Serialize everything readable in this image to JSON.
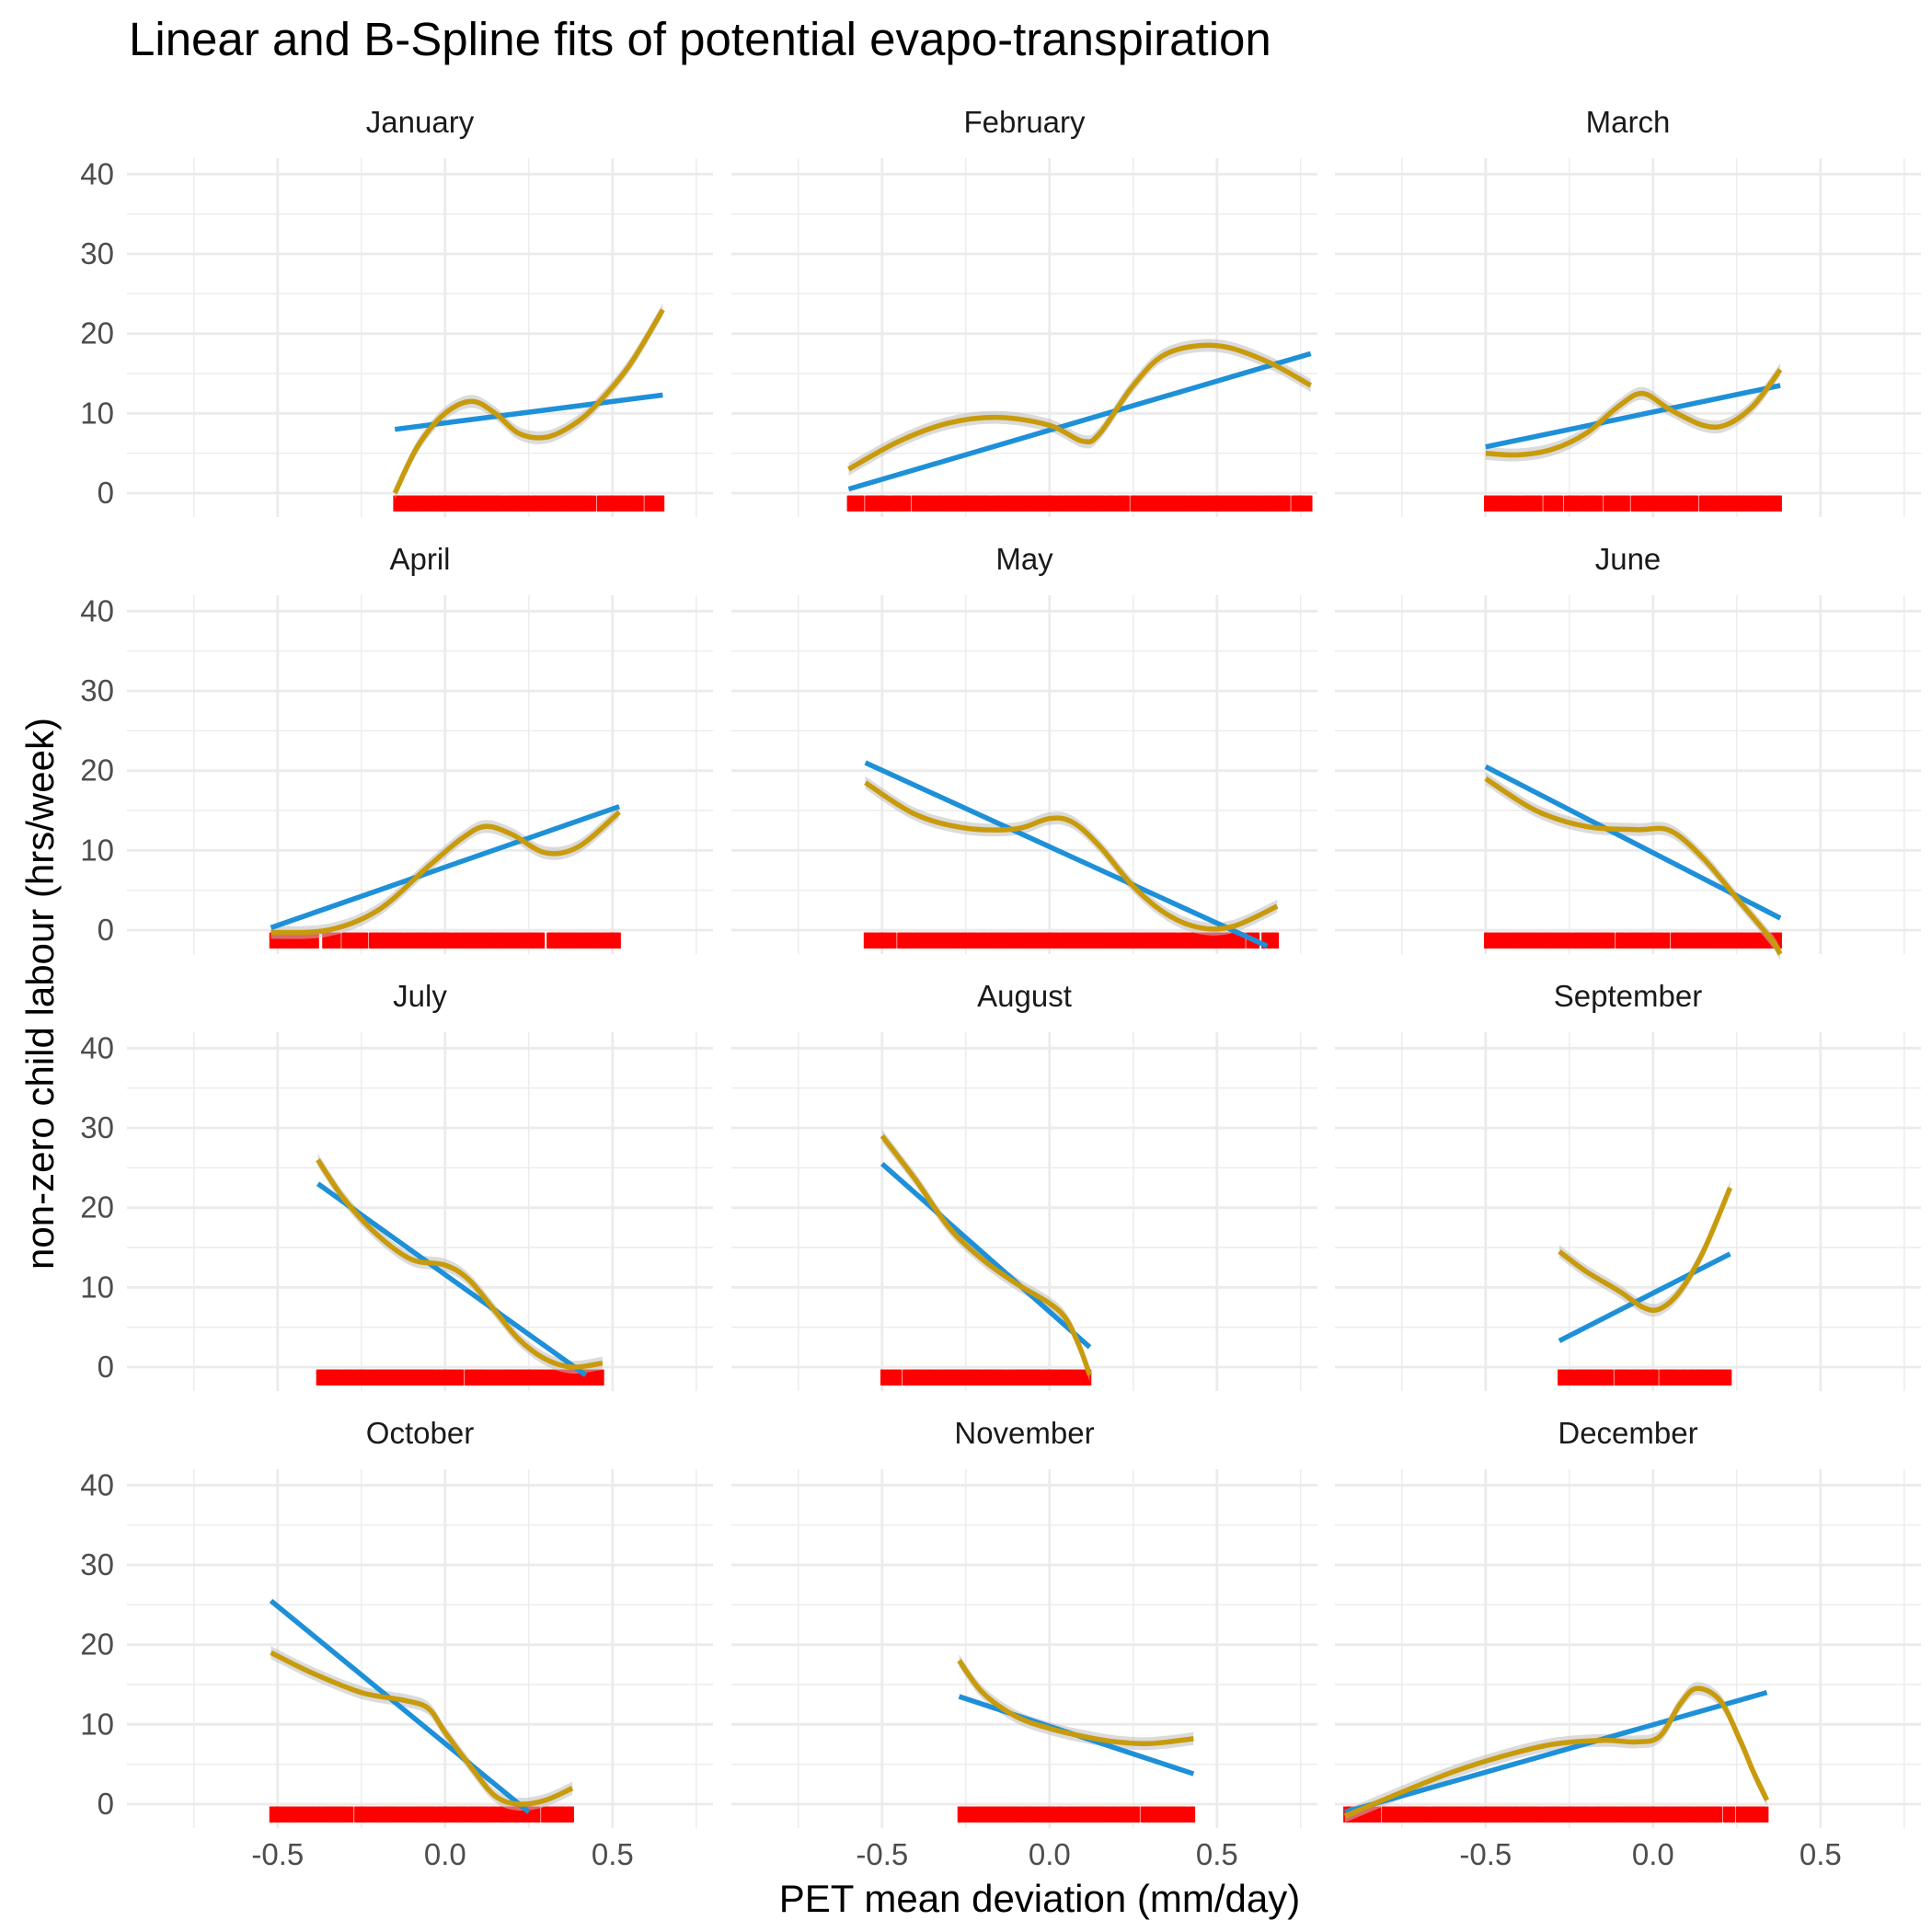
{
  "colors": {
    "linear": "#1e90d8",
    "spline": "#c89b0c",
    "rug": "#ff0000",
    "ribbon": "#bdbdbd",
    "grid": "#ebebeb"
  },
  "chart_data": {
    "type": "line",
    "title": "Linear and B-Spline fits of potential evapo-transpiration",
    "xlabel": "PET mean deviation (mm/day)",
    "ylabel": "non-zero child labour (hrs/week)",
    "xlim": [
      -0.95,
      0.8
    ],
    "ylim": [
      -3,
      42
    ],
    "x_ticks": [
      -0.5,
      0.0,
      0.5
    ],
    "x_tick_labels": [
      "-0.5",
      "0.0",
      "0.5"
    ],
    "y_ticks": [
      0,
      10,
      20,
      30,
      40
    ],
    "y_tick_labels": [
      "0",
      "10",
      "20",
      "30",
      "40"
    ],
    "grid": true,
    "legend": "none",
    "layout": {
      "rows": 4,
      "cols": 3
    },
    "panels": [
      {
        "name": "January",
        "x_range": [
          -0.15,
          0.65
        ],
        "linear": [
          [
            -0.15,
            8
          ],
          [
            0.65,
            12.3
          ]
        ],
        "spline": [
          [
            -0.15,
            0
          ],
          [
            -0.08,
            6
          ],
          [
            0.0,
            10
          ],
          [
            0.08,
            11.5
          ],
          [
            0.15,
            10
          ],
          [
            0.22,
            7.5
          ],
          [
            0.3,
            7
          ],
          [
            0.38,
            8.5
          ],
          [
            0.45,
            11
          ],
          [
            0.55,
            16
          ],
          [
            0.65,
            23
          ]
        ]
      },
      {
        "name": "February",
        "x_range": [
          -0.6,
          0.78
        ],
        "linear": [
          [
            -0.6,
            0.5
          ],
          [
            0.78,
            17.5
          ]
        ],
        "spline": [
          [
            -0.6,
            3
          ],
          [
            -0.45,
            6.5
          ],
          [
            -0.3,
            8.8
          ],
          [
            -0.15,
            9.5
          ],
          [
            0.0,
            8.5
          ],
          [
            0.1,
            6.5
          ],
          [
            0.15,
            7.5
          ],
          [
            0.25,
            13.5
          ],
          [
            0.35,
            17.5
          ],
          [
            0.5,
            18.5
          ],
          [
            0.65,
            16.5
          ],
          [
            0.78,
            13.5
          ]
        ]
      },
      {
        "name": "March",
        "x_range": [
          -0.5,
          0.38
        ],
        "linear": [
          [
            -0.5,
            5.8
          ],
          [
            0.38,
            13.5
          ]
        ],
        "spline": [
          [
            -0.5,
            5
          ],
          [
            -0.4,
            4.8
          ],
          [
            -0.3,
            5.5
          ],
          [
            -0.2,
            7.5
          ],
          [
            -0.1,
            11
          ],
          [
            -0.03,
            12.5
          ],
          [
            0.05,
            10.5
          ],
          [
            0.15,
            8.5
          ],
          [
            0.22,
            8.6
          ],
          [
            0.3,
            11
          ],
          [
            0.38,
            15.5
          ]
        ]
      },
      {
        "name": "April",
        "x_range": [
          -0.52,
          0.52
        ],
        "linear": [
          [
            -0.52,
            0.3
          ],
          [
            0.52,
            15.5
          ]
        ],
        "spline": [
          [
            -0.52,
            -0.3
          ],
          [
            -0.35,
            0
          ],
          [
            -0.2,
            2.5
          ],
          [
            -0.05,
            8
          ],
          [
            0.05,
            11.5
          ],
          [
            0.12,
            13
          ],
          [
            0.2,
            12
          ],
          [
            0.3,
            9.7
          ],
          [
            0.4,
            10.5
          ],
          [
            0.52,
            14.8
          ]
        ]
      },
      {
        "name": "May",
        "x_range": [
          -0.55,
          0.68
        ],
        "linear": [
          [
            -0.55,
            21
          ],
          [
            0.65,
            -2
          ]
        ],
        "spline": [
          [
            -0.55,
            18.5
          ],
          [
            -0.4,
            14.5
          ],
          [
            -0.25,
            12.8
          ],
          [
            -0.1,
            12.7
          ],
          [
            0.0,
            14
          ],
          [
            0.07,
            13.5
          ],
          [
            0.15,
            10.5
          ],
          [
            0.25,
            5.5
          ],
          [
            0.35,
            2
          ],
          [
            0.45,
            0.3
          ],
          [
            0.55,
            0.5
          ],
          [
            0.68,
            3
          ]
        ]
      },
      {
        "name": "June",
        "x_range": [
          -0.5,
          0.38
        ],
        "linear": [
          [
            -0.5,
            20.5
          ],
          [
            0.38,
            1.5
          ]
        ],
        "spline": [
          [
            -0.5,
            19
          ],
          [
            -0.35,
            15
          ],
          [
            -0.2,
            13
          ],
          [
            -0.05,
            12.6
          ],
          [
            0.05,
            12.5
          ],
          [
            0.15,
            9
          ],
          [
            0.25,
            4
          ],
          [
            0.35,
            -1
          ],
          [
            0.38,
            -3
          ]
        ]
      },
      {
        "name": "July",
        "x_range": [
          -0.38,
          0.47
        ],
        "linear": [
          [
            -0.38,
            23
          ],
          [
            0.42,
            -1
          ]
        ],
        "spline": [
          [
            -0.38,
            26
          ],
          [
            -0.3,
            21
          ],
          [
            -0.2,
            16.5
          ],
          [
            -0.1,
            13.5
          ],
          [
            0.0,
            12.8
          ],
          [
            0.07,
            11
          ],
          [
            0.15,
            7
          ],
          [
            0.22,
            3.5
          ],
          [
            0.3,
            1
          ],
          [
            0.38,
            0
          ],
          [
            0.47,
            0.5
          ]
        ]
      },
      {
        "name": "August",
        "x_range": [
          -0.5,
          0.12
        ],
        "linear": [
          [
            -0.5,
            25.5
          ],
          [
            0.12,
            2.5
          ]
        ],
        "spline": [
          [
            -0.5,
            29
          ],
          [
            -0.4,
            23.5
          ],
          [
            -0.3,
            17.5
          ],
          [
            -0.2,
            13.5
          ],
          [
            -0.1,
            10.5
          ],
          [
            0.0,
            8
          ],
          [
            0.05,
            6
          ],
          [
            0.09,
            2.5
          ],
          [
            0.12,
            -1
          ]
        ]
      },
      {
        "name": "September",
        "x_range": [
          -0.28,
          0.23
        ],
        "linear": [
          [
            -0.28,
            3.3
          ],
          [
            0.23,
            14.2
          ]
        ],
        "spline": [
          [
            -0.28,
            14.5
          ],
          [
            -0.2,
            12
          ],
          [
            -0.1,
            9.5
          ],
          [
            -0.03,
            7.5
          ],
          [
            0.02,
            7.3
          ],
          [
            0.08,
            9.5
          ],
          [
            0.15,
            14.5
          ],
          [
            0.23,
            22.5
          ]
        ]
      },
      {
        "name": "October",
        "x_range": [
          -0.52,
          0.38
        ],
        "linear": [
          [
            -0.52,
            25.5
          ],
          [
            0.25,
            -1
          ]
        ],
        "spline": [
          [
            -0.52,
            19
          ],
          [
            -0.4,
            16.5
          ],
          [
            -0.25,
            14
          ],
          [
            -0.12,
            13
          ],
          [
            -0.05,
            12
          ],
          [
            0.0,
            9
          ],
          [
            0.08,
            4.5
          ],
          [
            0.15,
            1
          ],
          [
            0.22,
            0
          ],
          [
            0.3,
            0.5
          ],
          [
            0.38,
            2
          ]
        ]
      },
      {
        "name": "November",
        "x_range": [
          -0.27,
          0.43
        ],
        "linear": [
          [
            -0.27,
            13.5
          ],
          [
            0.43,
            3.8
          ]
        ],
        "spline": [
          [
            -0.27,
            18
          ],
          [
            -0.2,
            14
          ],
          [
            -0.1,
            11
          ],
          [
            0.0,
            9.5
          ],
          [
            0.1,
            8.5
          ],
          [
            0.2,
            7.8
          ],
          [
            0.3,
            7.6
          ],
          [
            0.43,
            8.2
          ]
        ]
      },
      {
        "name": "December",
        "x_range": [
          -0.92,
          0.34
        ],
        "linear": [
          [
            -0.92,
            -1
          ],
          [
            0.34,
            14
          ]
        ],
        "spline": [
          [
            -0.92,
            -1.5
          ],
          [
            -0.75,
            1.5
          ],
          [
            -0.6,
            4
          ],
          [
            -0.45,
            6
          ],
          [
            -0.3,
            7.5
          ],
          [
            -0.15,
            8
          ],
          [
            -0.05,
            7.8
          ],
          [
            0.02,
            8.5
          ],
          [
            0.08,
            12.5
          ],
          [
            0.13,
            14.5
          ],
          [
            0.2,
            13
          ],
          [
            0.26,
            8
          ],
          [
            0.3,
            4
          ],
          [
            0.34,
            0.5
          ]
        ]
      }
    ]
  }
}
